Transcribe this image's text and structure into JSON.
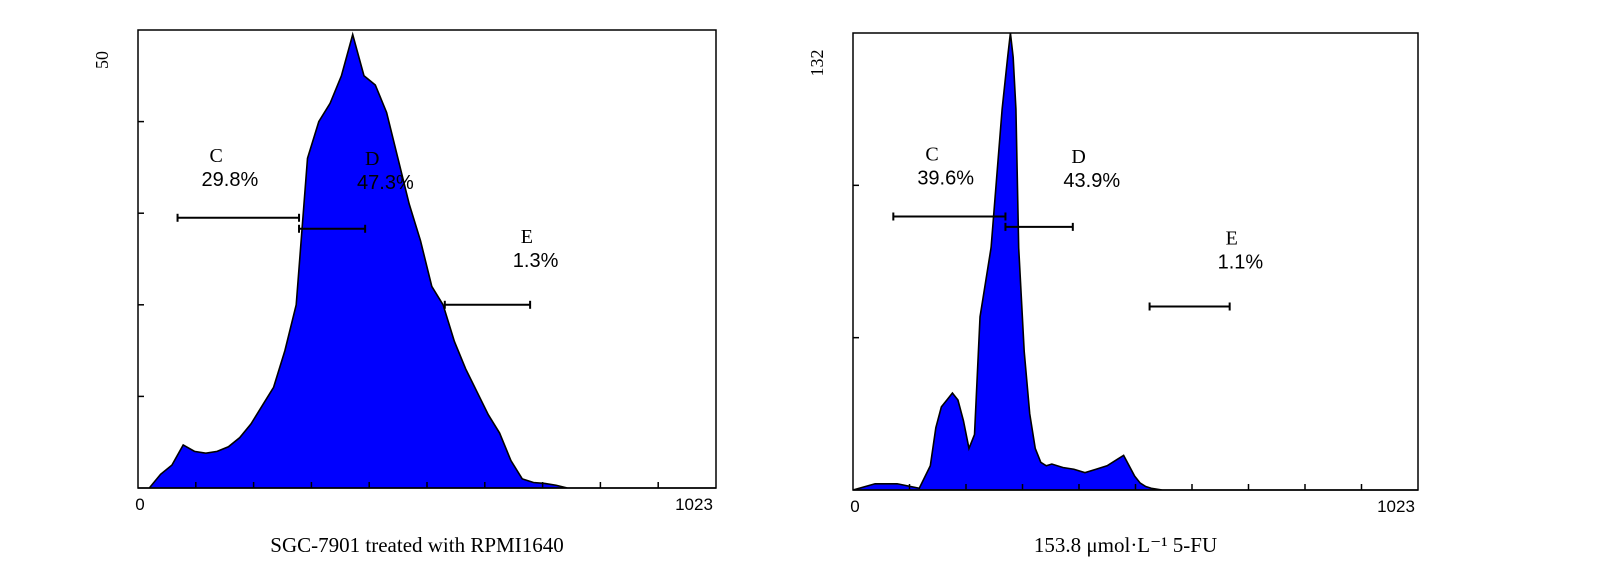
{
  "chart_data": [
    {
      "type": "area",
      "caption": "SGC-7901 treated with RPMI1640",
      "color": "#0000ff",
      "outline_color": "#000000",
      "xlim": [
        0,
        1023
      ],
      "ylim": [
        0,
        50
      ],
      "x_tick_labels": [
        "0",
        "1023"
      ],
      "y_tick_label": "50",
      "x": [
        0,
        20,
        40,
        60,
        80,
        100,
        120,
        140,
        160,
        180,
        200,
        220,
        240,
        260,
        280,
        300,
        320,
        340,
        360,
        380,
        400,
        420,
        440,
        460,
        480,
        500,
        520,
        540,
        560,
        580,
        600,
        620,
        640,
        660,
        680,
        700,
        720,
        740,
        760,
        780,
        800,
        820,
        840,
        860,
        880,
        900,
        920,
        940,
        960,
        980,
        1000,
        1023
      ],
      "y": [
        0,
        0,
        1.5,
        2.5,
        4.7,
        4,
        3.8,
        4,
        4.5,
        5.5,
        7,
        9,
        11,
        15,
        20,
        36,
        40,
        42,
        45,
        49.5,
        45,
        44,
        41,
        36,
        31,
        27,
        22,
        20,
        16,
        13,
        10.5,
        8,
        6,
        3,
        1,
        0.6,
        0.5,
        0.3,
        0,
        0,
        0,
        0,
        0,
        0,
        0,
        0,
        0,
        0,
        0,
        0,
        0,
        0
      ],
      "markers": [
        {
          "label": "C",
          "value": "29.8%",
          "range": [
            70,
            285
          ],
          "level": 29.5
        },
        {
          "label": "D",
          "value": "47.3%",
          "range": [
            285,
            402
          ],
          "level": 28.3
        },
        {
          "label": "E",
          "value": "1.3%",
          "range": [
            543,
            694
          ],
          "level": 20
        }
      ]
    },
    {
      "type": "area",
      "caption": "153.8 μmol·L⁻¹ 5-FU",
      "color": "#0000ff",
      "outline_color": "#000000",
      "xlim": [
        0,
        1023
      ],
      "ylim": [
        0,
        132
      ],
      "x_tick_labels": [
        "0",
        "1023"
      ],
      "y_tick_label": "132",
      "x": [
        0,
        40,
        80,
        120,
        140,
        150,
        160,
        170,
        180,
        190,
        200,
        210,
        220,
        230,
        240,
        250,
        260,
        270,
        280,
        285,
        290,
        295,
        300,
        310,
        320,
        330,
        340,
        350,
        360,
        380,
        400,
        420,
        440,
        460,
        480,
        490,
        500,
        510,
        520,
        530,
        540,
        560,
        600,
        700,
        800,
        900,
        1023
      ],
      "y": [
        0,
        1.8,
        1.8,
        0.5,
        7,
        18,
        24,
        26,
        28,
        26,
        20,
        12,
        16,
        50,
        60,
        70,
        90,
        110,
        125,
        132,
        125,
        110,
        70,
        40,
        22,
        12,
        8,
        7,
        7.5,
        6.5,
        6,
        5,
        6,
        7,
        9,
        10,
        7,
        4,
        2,
        1,
        0.5,
        0,
        0,
        0,
        0,
        0,
        0
      ],
      "markers": [
        {
          "label": "C",
          "value": "39.6%",
          "range": [
            73,
            276
          ],
          "level": 79
        },
        {
          "label": "D",
          "value": "43.9%",
          "range": [
            276,
            398
          ],
          "level": 76
        },
        {
          "label": "E",
          "value": "1.1%",
          "range": [
            537,
            682
          ],
          "level": 53
        }
      ]
    }
  ]
}
